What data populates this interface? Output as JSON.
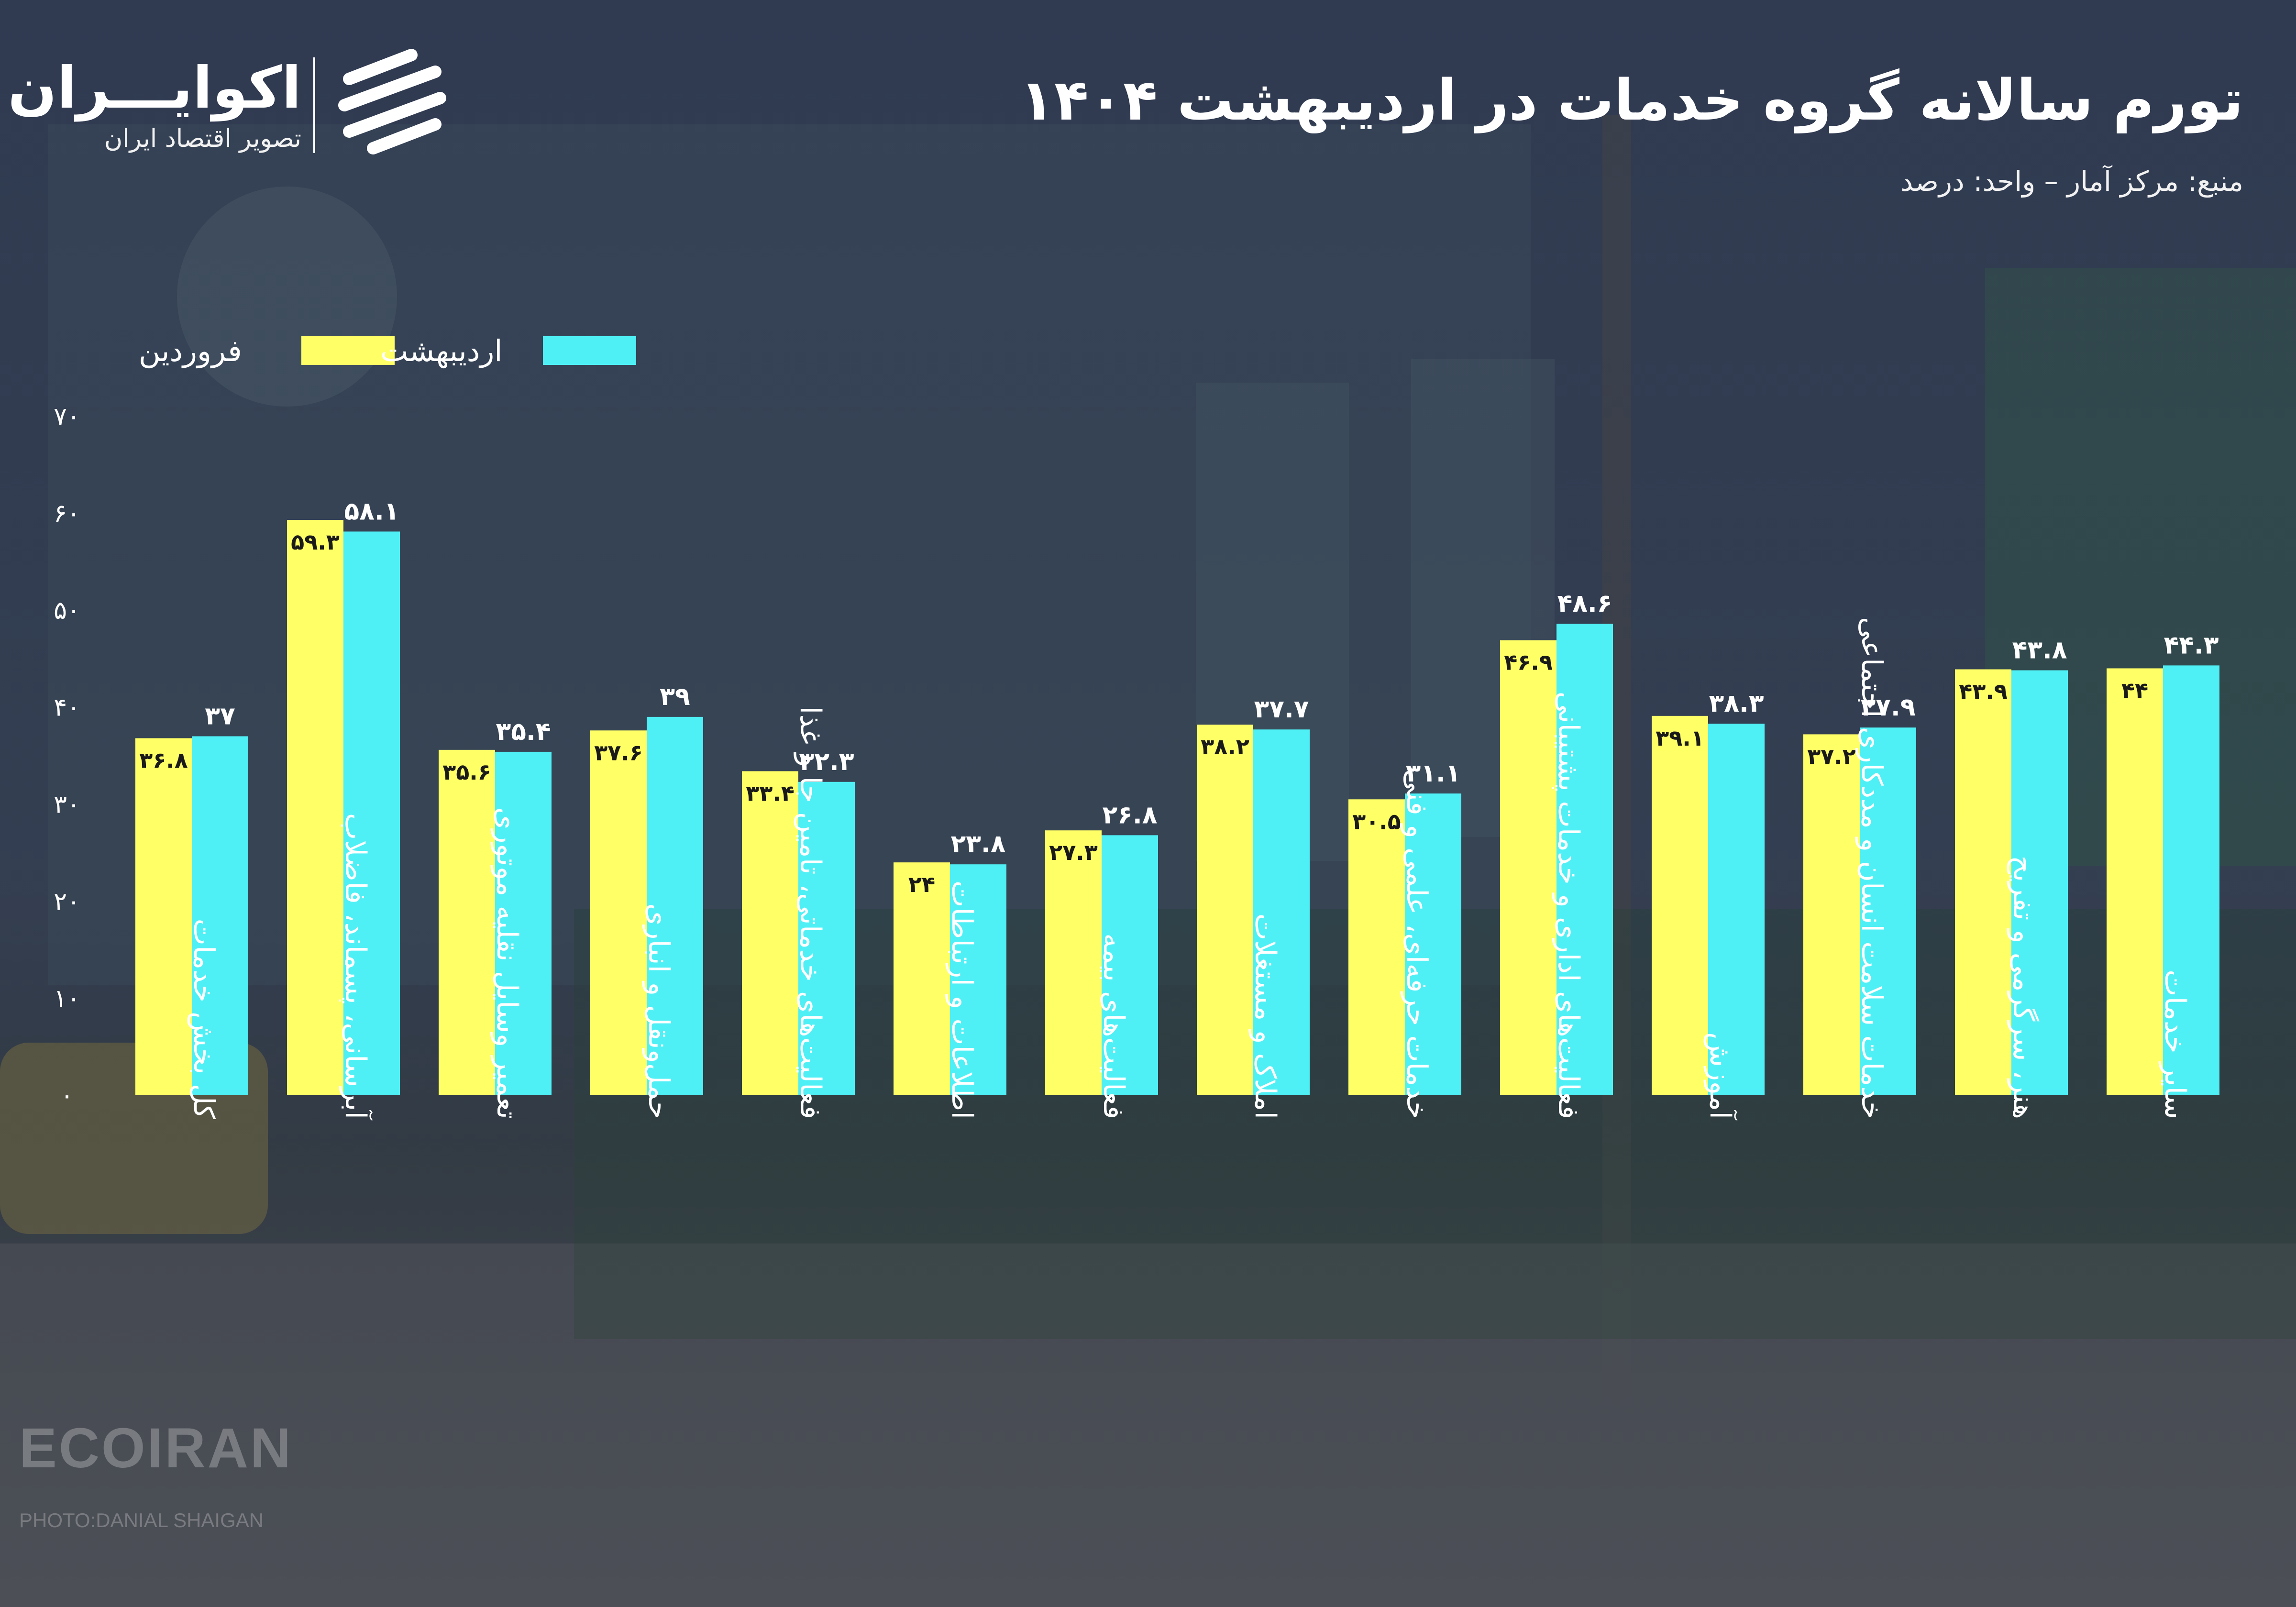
{
  "header": {
    "title": "تورم سالانه گروه خدمات در اردیبهشت ۱۴۰۴",
    "subtitle": "منبع: مرکز آمار – واحد: درصد"
  },
  "logo": {
    "name": "اکوایـــران",
    "tagline": "تصویر اقتصاد ایران"
  },
  "watermark": {
    "brand": "ECOIRAN",
    "credit": "PHOTO:DANIAL SHAIGAN"
  },
  "colors": {
    "farvardin": "#ffff66",
    "ordibehesht": "#4ff0f5",
    "text": "#ffffff",
    "bar_label_dark": "#1a1a1a"
  },
  "chart_data": {
    "type": "bar",
    "title": "تورم سالانه گروه خدمات در اردیبهشت ۱۴۰۴",
    "xlabel": "",
    "ylabel": "",
    "ylim": [
      0,
      70
    ],
    "yticks": [
      0,
      10,
      20,
      30,
      40,
      50,
      60,
      70
    ],
    "ytick_labels": [
      "۰",
      "۱۰",
      "۲۰",
      "۳۰",
      "۴۰",
      "۵۰",
      "۶۰",
      "۷۰"
    ],
    "grid": false,
    "legend_position": "top-left",
    "categories": [
      "کل بخش خدمات",
      "آبرسانی، پسماند، فاضلاب",
      "تعمیر وسایل نقلیه موتوری",
      "حمل‌ونقل و انباری",
      "فعالیت‌های خدماتی، تامین جا و غذا",
      "اطلاعات و ارتباطات",
      "فعالیت‌های بیمه",
      "املاک و مستغلات",
      "خدمات حرفه‌ای، علمی و فنی",
      "فعالیت‌های اداری و خدمات پشتیبانی",
      "آموزش",
      "خدمات سلامت انسان و مددکاری اجتماعی",
      "هنر، سرگرمی و تفریح",
      "سایر خدمات"
    ],
    "series": [
      {
        "name": "فروردین",
        "values": [
          36.8,
          59.3,
          35.6,
          37.6,
          33.4,
          24,
          27.3,
          38.2,
          30.5,
          46.9,
          39.1,
          37.2,
          43.9,
          44
        ],
        "labels": [
          "۳۶.۸",
          "۵۹.۳",
          "۳۵.۶",
          "۳۷.۶",
          "۳۳.۴",
          "۲۴",
          "۲۷.۳",
          "۳۸.۲",
          "۳۰.۵",
          "۴۶.۹",
          "۳۹.۱",
          "۳۷.۲",
          "۴۳.۹",
          "۴۴"
        ]
      },
      {
        "name": "اردیبهشت",
        "values": [
          37,
          58.1,
          35.4,
          39,
          32.3,
          23.8,
          26.8,
          37.7,
          31.1,
          48.6,
          38.3,
          37.9,
          43.8,
          44.3
        ],
        "labels": [
          "۳۷",
          "۵۸.۱",
          "۳۵.۴",
          "۳۹",
          "۳۲.۳",
          "۲۳.۸",
          "۲۶.۸",
          "۳۷.۷",
          "۳۱.۱",
          "۴۸.۶",
          "۳۸.۳",
          "۳۷.۹",
          "۴۳.۸",
          "۴۴.۳"
        ]
      }
    ]
  }
}
